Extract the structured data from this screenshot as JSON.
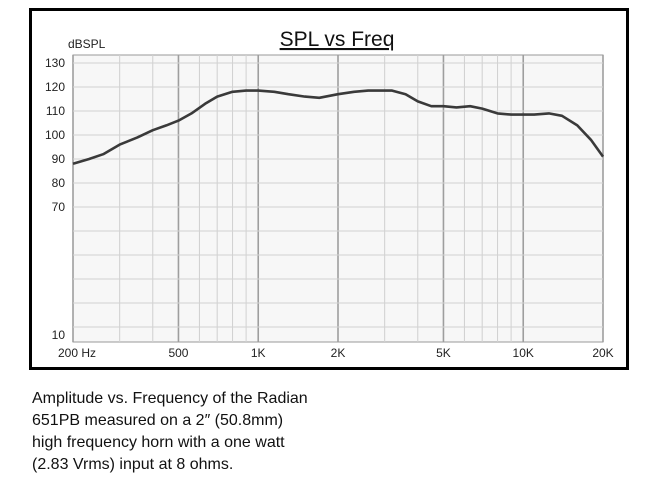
{
  "chart_data": {
    "type": "line",
    "title": "SPL vs Freq",
    "ylabel": "dBSPL",
    "xlabel": "",
    "x_scale": "log",
    "xlim": [
      200,
      20000
    ],
    "x_ticks": [
      {
        "value": 200,
        "label": "200 Hz"
      },
      {
        "value": 500,
        "label": "500"
      },
      {
        "value": 1000,
        "label": "1K"
      },
      {
        "value": 2000,
        "label": "2K"
      },
      {
        "value": 5000,
        "label": "5K"
      },
      {
        "value": 10000,
        "label": "10K"
      },
      {
        "value": 20000,
        "label": "20K"
      }
    ],
    "y_ticks": [
      "130",
      "120",
      "110",
      "100",
      "90",
      "80",
      "70",
      "10"
    ],
    "grid": true,
    "series": [
      {
        "color": "#3a3a3a",
        "x": [
          200,
          230,
          260,
          300,
          350,
          400,
          450,
          500,
          560,
          630,
          700,
          800,
          900,
          1000,
          1150,
          1300,
          1500,
          1700,
          2000,
          2300,
          2600,
          3000,
          3200,
          3600,
          4000,
          4500,
          5000,
          5600,
          6300,
          7000,
          8000,
          9000,
          10000,
          11000,
          12500,
          14000,
          16000,
          18000,
          20000
        ],
        "y": [
          88,
          90,
          92,
          96,
          99,
          102,
          104,
          106,
          109,
          113,
          116,
          118,
          118.5,
          118.5,
          118,
          117,
          116,
          115.5,
          117,
          118,
          118.5,
          118.5,
          118.5,
          117,
          114,
          112,
          112,
          111.5,
          112,
          111,
          109,
          108.5,
          108.5,
          108.5,
          109,
          108,
          104,
          98,
          91
        ]
      }
    ]
  },
  "caption": {
    "lines": [
      "Amplitude vs. Frequency of the Radian",
      "651PB measured on a 2″ (50.8mm)",
      "high frequency horn with a one watt",
      "(2.83 Vrms) input at 8 ohms."
    ]
  }
}
